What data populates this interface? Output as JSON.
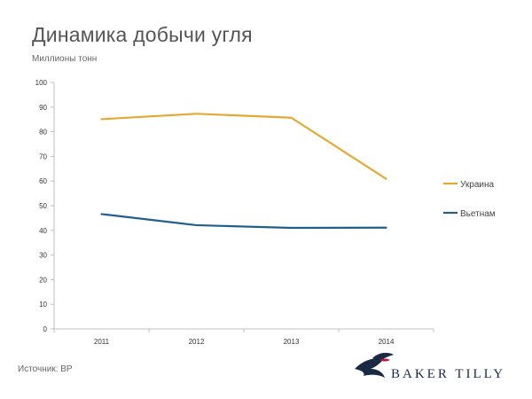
{
  "header": {
    "title": "Динамика добычи угля",
    "subtitle": "Миллионы тонн"
  },
  "footer": {
    "source": "Источник: BP",
    "logo_text": "BAKER TILLY"
  },
  "colors": {
    "ukraine": "#e5a933",
    "vietnam": "#1f5f8b",
    "axis": "#bfbfbf"
  },
  "chart_data": {
    "type": "line",
    "title": "Динамика добычи угля",
    "ylabel": "Миллионы тонн",
    "xlabel": "",
    "categories": [
      "2011",
      "2012",
      "2013",
      "2014"
    ],
    "ylim": [
      0,
      100
    ],
    "yticks": [
      0,
      10,
      20,
      30,
      40,
      50,
      60,
      70,
      80,
      90,
      100
    ],
    "grid": false,
    "legend": "right",
    "series": [
      {
        "name": "Украина",
        "values": [
          85.1,
          87.3,
          85.7,
          60.9
        ],
        "color": "#e5a933"
      },
      {
        "name": "Вьетнам",
        "values": [
          46.6,
          42.1,
          41.0,
          41.1
        ],
        "color": "#1f5f8b"
      }
    ]
  }
}
